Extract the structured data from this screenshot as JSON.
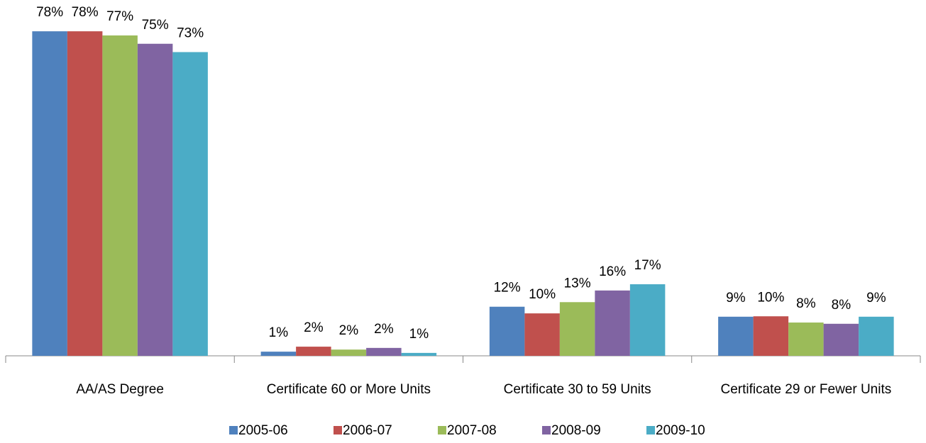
{
  "chart_data": {
    "type": "bar",
    "categories": [
      "AA/AS Degree",
      "Certificate 60 or More Units",
      "Certificate 30 to 59 Units",
      "Certificate 29 or Fewer Units"
    ],
    "series": [
      {
        "name": "2005-06",
        "color": "#4f81bd",
        "values": [
          78,
          1,
          11.8,
          9.4
        ],
        "value_labels": [
          "78%",
          "1%",
          "12%",
          "9%"
        ]
      },
      {
        "name": "2006-07",
        "color": "#c0504d",
        "values": [
          78,
          2.2,
          10.2,
          9.5
        ],
        "value_labels": [
          "78%",
          "2%",
          "10%",
          "10%"
        ]
      },
      {
        "name": "2007-08",
        "color": "#9bbb59",
        "values": [
          77,
          1.5,
          12.9,
          8
        ],
        "value_labels": [
          "77%",
          "2%",
          "13%",
          "8%"
        ]
      },
      {
        "name": "2008-09",
        "color": "#8064a2",
        "values": [
          75,
          1.9,
          15.7,
          7.7
        ],
        "value_labels": [
          "75%",
          "2%",
          "16%",
          "8%"
        ]
      },
      {
        "name": "2009-10",
        "color": "#4bacc6",
        "values": [
          73,
          0.7,
          17.2,
          9.4
        ],
        "value_labels": [
          "73%",
          "1%",
          "17%",
          "9%"
        ]
      }
    ],
    "legend": "bottom"
  }
}
